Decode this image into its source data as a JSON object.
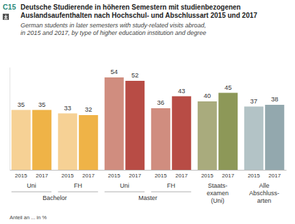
{
  "chart_data": {
    "type": "bar",
    "title": [
      "Deutsche Studierende in höheren Semestern mit studienbezogenen",
      "Auslandsaufenthalten nach Hochschul- und Abschlussart 2015 und 2017"
    ],
    "subtitle": [
      "German students in later semesters with study-related visits abroad,",
      "in 2015 and 2017, by type of higher education institution and degree"
    ],
    "annotations": [
      {
        "text": "C15"
      },
      {
        "text": "Anteil an ... in %"
      }
    ],
    "categories": [
      "Uni",
      "FH",
      "Uni",
      "FH",
      "Staats-\nexamen\n(Uni)",
      "Alle\nAbschluss-\narten"
    ],
    "groups": [
      {
        "label": "Bachelor",
        "categories": [
          0,
          1
        ]
      },
      {
        "label": "Master",
        "categories": [
          2,
          3
        ]
      }
    ],
    "series": [
      {
        "name": "2015",
        "colors": [
          "#f6d195",
          "#f6d195",
          "#d08d7f",
          "#d08d7f",
          "#a9ab7d",
          "#b3c3c6"
        ],
        "values": [
          35,
          33,
          54,
          36,
          40,
          37
        ]
      },
      {
        "name": "2017",
        "colors": [
          "#efb347",
          "#efb347",
          "#b84c45",
          "#b84c45",
          "#8d9858",
          "#93a8ae"
        ],
        "values": [
          35,
          32,
          52,
          43,
          45,
          38
        ]
      }
    ],
    "ylim": [
      0,
      60
    ],
    "data_labels": true,
    "tick_labels": "x"
  }
}
